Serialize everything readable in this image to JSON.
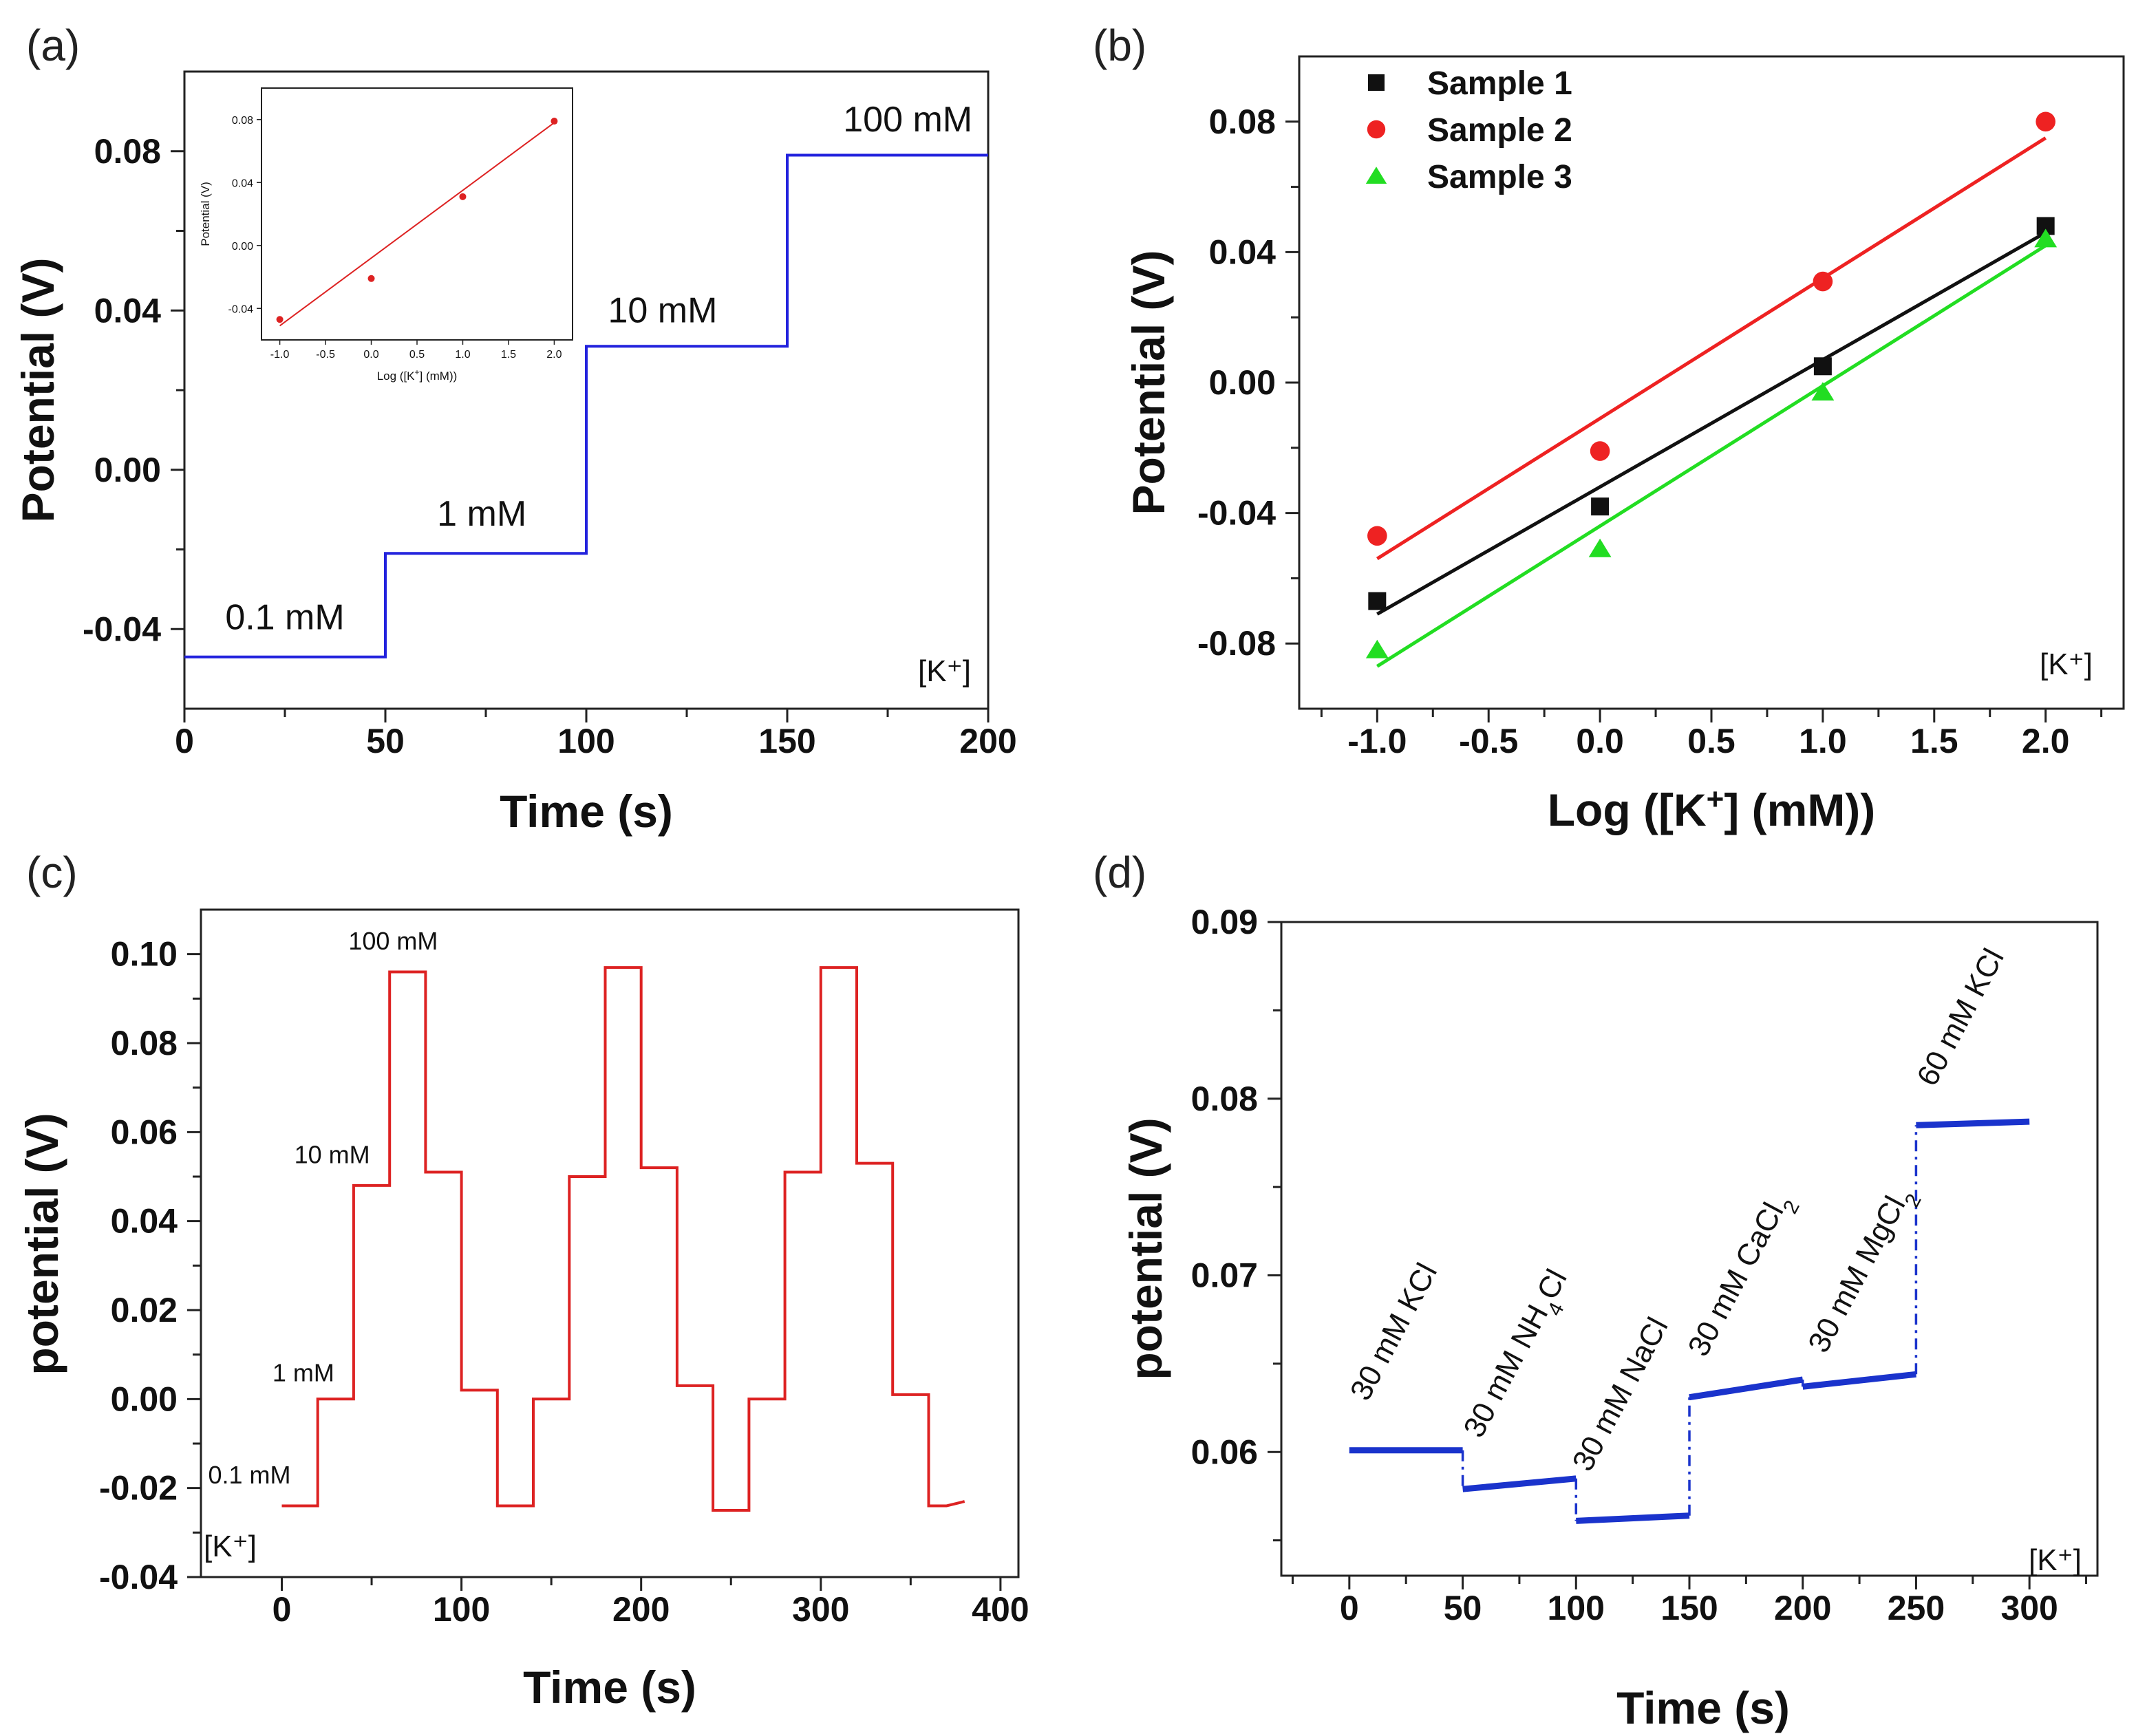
{
  "chart_data": [
    {
      "panel": "(a)",
      "type": "line",
      "xlabel": "Time (s)",
      "ylabel": "Potential (V)",
      "xlim": [
        0,
        200
      ],
      "ylim": [
        -0.06,
        0.1
      ],
      "xticks": [
        0,
        50,
        100,
        150,
        200
      ],
      "xtick_labels": [
        "0",
        "50",
        "100",
        "150",
        "200"
      ],
      "yticks": [
        -0.04,
        0.0,
        0.04,
        0.08
      ],
      "ytick_labels": [
        "-0.04",
        "0.00",
        "0.04",
        "0.08"
      ],
      "corner_label": "[K⁺]",
      "series": [
        {
          "name": "potential",
          "color": "#2222dd",
          "x": [
            0,
            50,
            50,
            100,
            100,
            150,
            150,
            160,
            200
          ],
          "y": [
            -0.047,
            -0.047,
            -0.021,
            -0.021,
            0.031,
            0.031,
            0.079,
            0.079,
            0.079
          ]
        }
      ],
      "annotations": [
        {
          "text": "0.1 mM",
          "x": 25,
          "y": -0.04
        },
        {
          "text": "1 mM",
          "x": 74,
          "y": -0.014
        },
        {
          "text": "10 mM",
          "x": 119,
          "y": 0.037
        },
        {
          "text": "100 mM",
          "x": 180,
          "y": 0.085
        }
      ],
      "inset": {
        "xlabel": "Log ([K⁺] (mM))",
        "ylabel": "Potential (V)",
        "xlim": [
          -1.2,
          2.2
        ],
        "ylim": [
          -0.06,
          0.1
        ],
        "xticks": [
          -1.0,
          -0.5,
          0.0,
          0.5,
          1.0,
          1.5,
          2.0
        ],
        "xtick_labels": [
          "-1.0",
          "-0.5",
          "0.0",
          "0.5",
          "1.0",
          "1.5",
          "2.0"
        ],
        "yticks": [
          -0.04,
          0.0,
          0.04,
          0.08
        ],
        "ytick_labels": [
          "-0.04",
          "0.00",
          "0.04",
          "0.08"
        ],
        "x": [
          -1,
          0,
          1,
          2
        ],
        "y": [
          -0.047,
          -0.021,
          0.031,
          0.079
        ],
        "fit": {
          "x": [
            -1,
            2
          ],
          "y": [
            -0.051,
            0.078
          ]
        },
        "color": "#dd2222"
      }
    },
    {
      "panel": "(b)",
      "type": "scatter",
      "xlabel": "Log ([K⁺] (mM))",
      "ylabel": "Potential (V)",
      "xlim": [
        -1.35,
        2.35
      ],
      "ylim": [
        -0.1,
        0.1
      ],
      "xticks": [
        -1.0,
        -0.5,
        0.0,
        0.5,
        1.0,
        1.5,
        2.0
      ],
      "xtick_labels": [
        "-1.0",
        "-0.5",
        "0.0",
        "0.5",
        "1.0",
        "1.5",
        "2.0"
      ],
      "yticks": [
        -0.08,
        -0.04,
        0.0,
        0.04,
        0.08
      ],
      "ytick_labels": [
        "-0.08",
        "-0.04",
        "0.00",
        "0.04",
        "0.08"
      ],
      "corner_label": "[K⁺]",
      "legend_position": "top-left",
      "series": [
        {
          "name": "Sample 1",
          "marker": "square",
          "color": "#111111",
          "x": [
            -1,
            0,
            1,
            2
          ],
          "y": [
            -0.067,
            -0.038,
            0.005,
            0.048
          ],
          "fit": {
            "x": [
              -1,
              2
            ],
            "y": [
              -0.071,
              0.046
            ]
          }
        },
        {
          "name": "Sample 2",
          "marker": "circle",
          "color": "#ee2222",
          "x": [
            -1,
            0,
            1,
            2
          ],
          "y": [
            -0.047,
            -0.021,
            0.031,
            0.08
          ],
          "fit": {
            "x": [
              -1,
              2
            ],
            "y": [
              -0.054,
              0.075
            ]
          }
        },
        {
          "name": "Sample 3",
          "marker": "triangle",
          "color": "#22dd22",
          "x": [
            -1,
            0,
            1,
            2
          ],
          "y": [
            -0.082,
            -0.051,
            -0.003,
            0.044
          ],
          "fit": {
            "x": [
              -1,
              2
            ],
            "y": [
              -0.087,
              0.042
            ]
          }
        }
      ]
    },
    {
      "panel": "(c)",
      "type": "line",
      "xlabel": "Time (s)",
      "ylabel": "potential (V)",
      "xlim": [
        -45,
        410
      ],
      "ylim": [
        -0.04,
        0.11
      ],
      "xticks": [
        0,
        100,
        200,
        300,
        400
      ],
      "xtick_labels": [
        "0",
        "100",
        "200",
        "300",
        "400"
      ],
      "yticks": [
        -0.04,
        -0.02,
        0.0,
        0.02,
        0.04,
        0.06,
        0.08,
        0.1
      ],
      "ytick_labels": [
        "-0.04",
        "-0.02",
        "0.00",
        "0.02",
        "0.04",
        "0.06",
        "0.08",
        "0.10"
      ],
      "corner_label": "[K⁺]",
      "series": [
        {
          "name": "potential",
          "color": "#dd2222",
          "x": [
            0,
            20,
            20,
            40,
            40,
            60,
            60,
            80,
            80,
            100,
            100,
            120,
            120,
            140,
            140,
            160,
            160,
            180,
            180,
            200,
            200,
            220,
            220,
            240,
            240,
            260,
            260,
            280,
            280,
            300,
            300,
            320,
            320,
            340,
            340,
            360,
            360,
            370,
            380
          ],
          "y": [
            -0.024,
            -0.024,
            0.0,
            0.0,
            0.048,
            0.048,
            0.096,
            0.096,
            0.051,
            0.051,
            0.002,
            0.002,
            -0.024,
            -0.024,
            0.0,
            0.0,
            0.05,
            0.05,
            0.097,
            0.097,
            0.052,
            0.052,
            0.003,
            0.003,
            -0.025,
            -0.025,
            0.0,
            0.0,
            0.051,
            0.051,
            0.097,
            0.097,
            0.053,
            0.053,
            0.001,
            0.001,
            -0.024,
            -0.024,
            -0.023
          ]
        }
      ],
      "annotations": [
        {
          "text": "0.1 mM",
          "x": -18,
          "y": -0.019
        },
        {
          "text": "1 mM",
          "x": 12,
          "y": 0.004
        },
        {
          "text": "10 mM",
          "x": 28,
          "y": 0.053
        },
        {
          "text": "100 mM",
          "x": 62,
          "y": 0.101
        }
      ]
    },
    {
      "panel": "(d)",
      "type": "line",
      "xlabel": "Time (s)",
      "ylabel": "potential (V)",
      "xlim": [
        -30,
        330
      ],
      "ylim": [
        0.053,
        0.09
      ],
      "xticks": [
        0,
        50,
        100,
        150,
        200,
        250,
        300
      ],
      "xtick_labels": [
        "0",
        "50",
        "100",
        "150",
        "200",
        "250",
        "300"
      ],
      "yticks": [
        0.06,
        0.07,
        0.08,
        0.09
      ],
      "ytick_labels": [
        "0.06",
        "0.07",
        "0.08",
        "0.09"
      ],
      "corner_label": "[K⁺]",
      "series": [
        {
          "name": "potential",
          "color": "#1a33cc",
          "segments": [
            {
              "x": [
                0,
                50
              ],
              "y": [
                0.0601,
                0.0601
              ]
            },
            {
              "x": [
                50,
                100
              ],
              "y": [
                0.0579,
                0.0585
              ]
            },
            {
              "x": [
                100,
                150
              ],
              "y": [
                0.0561,
                0.0564
              ]
            },
            {
              "x": [
                150,
                200
              ],
              "y": [
                0.0631,
                0.0641
              ]
            },
            {
              "x": [
                200,
                250
              ],
              "y": [
                0.0637,
                0.0644
              ]
            },
            {
              "x": [
                250,
                300
              ],
              "y": [
                0.0785,
                0.0787
              ]
            }
          ],
          "jumps": [
            {
              "x": 50,
              "y": [
                0.0601,
                0.0579
              ]
            },
            {
              "x": 100,
              "y": [
                0.0585,
                0.0561
              ]
            },
            {
              "x": 150,
              "y": [
                0.0564,
                0.0631
              ]
            },
            {
              "x": 200,
              "y": [
                0.0641,
                0.0637
              ]
            },
            {
              "x": 250,
              "y": [
                0.0644,
                0.0785
              ]
            }
          ]
        }
      ],
      "annotations": [
        {
          "base": "30 mM KCl",
          "sub": "",
          "tail": "",
          "x": 8,
          "y": 0.0628
        },
        {
          "base": "30 mM NH",
          "sub": "4",
          "tail": "Cl",
          "x": 58,
          "y": 0.0607
        },
        {
          "base": "30 mM NaCl",
          "sub": "",
          "tail": "",
          "x": 106,
          "y": 0.0588
        },
        {
          "base": "30 mM CaCl",
          "sub": "2",
          "tail": "",
          "x": 157,
          "y": 0.0653
        },
        {
          "base": "30 mM MgCl",
          "sub": "2",
          "tail": "",
          "x": 210,
          "y": 0.0655
        },
        {
          "base": "60 mM KCl",
          "sub": "",
          "tail": "",
          "x": 258,
          "y": 0.0806
        }
      ]
    }
  ]
}
